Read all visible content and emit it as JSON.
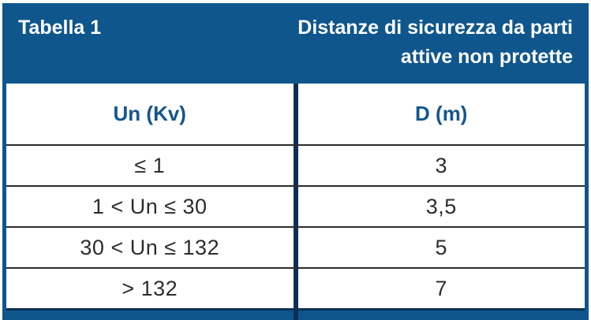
{
  "header": {
    "label": "Tabella 1",
    "title": "Distanze di sicurezza da parti\nattive non protette"
  },
  "table": {
    "columns": [
      "Un (Kv)",
      "D (m)"
    ],
    "rows": [
      {
        "un": "≤ 1",
        "d": "3"
      },
      {
        "un": "1 < Un ≤ 30",
        "d": "3,5"
      },
      {
        "un": "30 < Un ≤ 132",
        "d": "5"
      },
      {
        "un": "> 132",
        "d": "7"
      }
    ]
  },
  "colors": {
    "band_blue": "#0F568C",
    "divider_navy": "#0D2F55",
    "header_text_blue": "#15568E",
    "body_text": "#2D2D2D",
    "row_line": "#2B2B2B",
    "title_text": "#FFFFFF"
  }
}
